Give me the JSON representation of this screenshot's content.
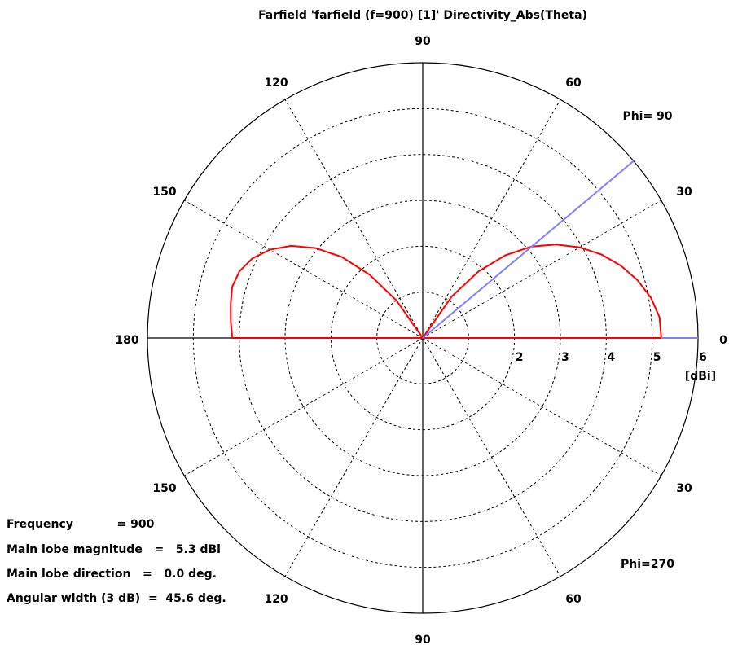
{
  "chart_data": {
    "type": "polar-line",
    "title": "Farfield 'farfield (f=900) [1]' Directivity_Abs(Theta)",
    "radial_unit": "[dBi]",
    "radial_ticks": [
      "2",
      "3",
      "4",
      "5",
      "6"
    ],
    "radial_range": [
      0,
      6
    ],
    "angle_labels": {
      "top": "90",
      "upper_right_60": "60",
      "upper_right_30": "30",
      "right": "0",
      "upper_left_120": "120",
      "upper_left_150": "150",
      "left": "180",
      "lower_left_150": "150",
      "lower_left_120": "120",
      "bottom": "90",
      "lower_right_30": "30",
      "lower_right_60": "60"
    },
    "cut_labels": {
      "upper": "Phi= 90",
      "lower": "Phi=270"
    },
    "grid": true,
    "series": [
      {
        "color": "#ff0000",
        "theta_deg": [
          0,
          5,
          10,
          15,
          20,
          25,
          30,
          35,
          40,
          45,
          50,
          55,
          60,
          70,
          80,
          90,
          100,
          110,
          120,
          125,
          130,
          135,
          140,
          145,
          150,
          155,
          160,
          165,
          170,
          175,
          180
        ],
        "r_dBi": [
          5.2,
          5.18,
          5.05,
          4.85,
          4.6,
          4.3,
          3.95,
          3.55,
          3.1,
          2.55,
          1.9,
          1.1,
          0.0,
          0,
          0,
          0,
          0,
          0,
          0.0,
          1.0,
          1.8,
          2.5,
          3.05,
          3.5,
          3.85,
          4.1,
          4.25,
          4.3,
          4.25,
          4.2,
          4.15
        ]
      },
      {
        "color": "#8080ff",
        "theta_deg": [
          0,
          40
        ],
        "r_dBi": [
          6,
          6
        ]
      }
    ]
  },
  "info": {
    "frequency": "Frequency           = 900",
    "main_lobe_magnitude": "Main lobe magnitude   =   5.3 dBi",
    "main_lobe_direction": "Main lobe direction   =   0.0 deg.",
    "angular_width": "Angular width (3 dB)  =  45.6 deg."
  }
}
